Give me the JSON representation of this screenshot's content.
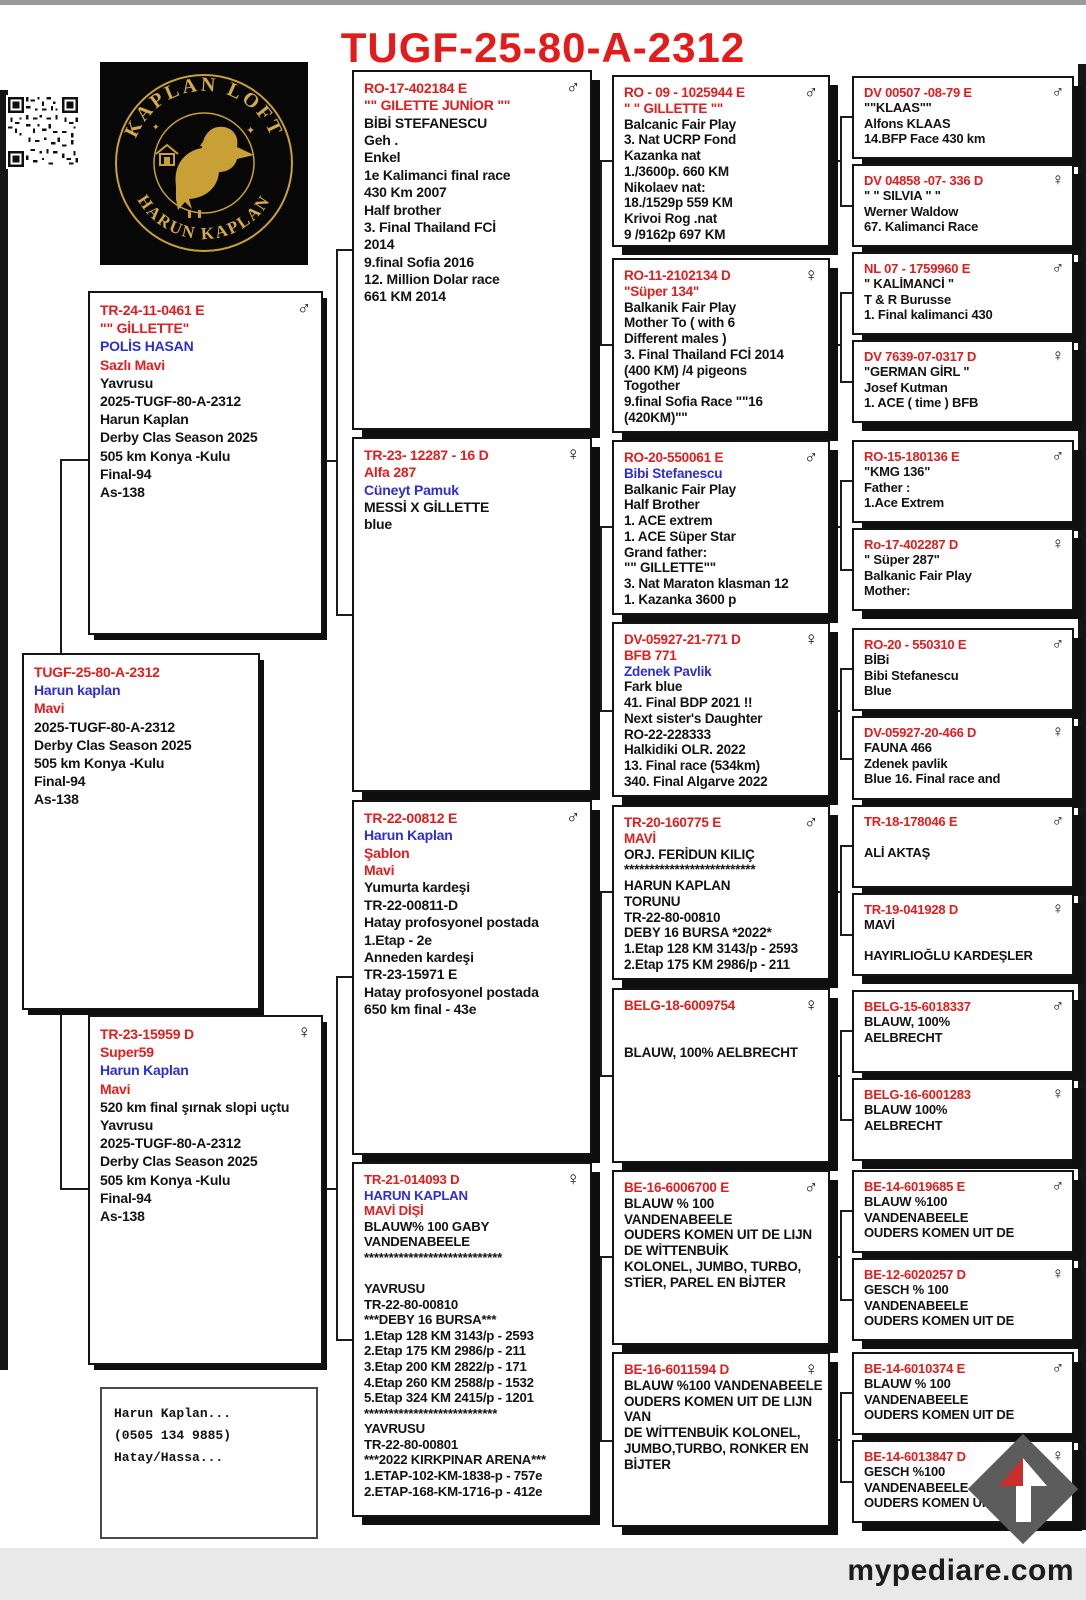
{
  "title": "TUGF-25-80-A-2312",
  "logo": {
    "loft_top": "KAPLAN LOFT",
    "loft_bottom": "HARUN KAPLAN"
  },
  "footer": {
    "site": "mypediare.com"
  },
  "contact": {
    "lines": [
      {
        "t": "Harun Kaplan..."
      },
      {
        "t": "(0505 134 9885)"
      },
      {
        "t": "Hatay/Hassa..."
      }
    ]
  },
  "boxes": {
    "subject": {
      "sex": "",
      "lines": [
        {
          "t": "TUGF-25-80-A-2312",
          "c": "red"
        },
        {
          "t": "Harun kaplan",
          "c": "blu"
        },
        {
          "t": "Mavi",
          "c": "red"
        },
        {
          "t": "2025-TUGF-80-A-2312"
        },
        {
          "t": "Derby Clas Season 2025"
        },
        {
          "t": "505 km Konya -Kulu"
        },
        {
          "t": "Final-94"
        },
        {
          "t": "As-138"
        }
      ]
    },
    "f": {
      "sex": "♂",
      "lines": [
        {
          "t": "TR-24-11-0461 E",
          "c": "red"
        },
        {
          "t": "\"\" GİLLETTE\"",
          "c": "red"
        },
        {
          "t": "POLİS HASAN",
          "c": "blu"
        },
        {
          "t": "Sazlı Mavi",
          "c": "red"
        },
        {
          "t": "Yavrusu"
        },
        {
          "t": "2025-TUGF-80-A-2312"
        },
        {
          "t": "Harun Kaplan"
        },
        {
          "t": "Derby Clas Season 2025"
        },
        {
          "t": "505 km Konya -Kulu"
        },
        {
          "t": "Final-94"
        },
        {
          "t": "As-138"
        }
      ]
    },
    "m": {
      "sex": "♀",
      "lines": [
        {
          "t": "TR-23-15959 D",
          "c": "red"
        },
        {
          "t": "Super59",
          "c": "red"
        },
        {
          "t": "Harun Kaplan",
          "c": "blu"
        },
        {
          "t": "Mavi",
          "c": "red"
        },
        {
          "t": "520 km final şırnak slopi uçtu"
        },
        {
          "t": "Yavrusu"
        },
        {
          "t": "2025-TUGF-80-A-2312"
        },
        {
          "t": "Derby Clas Season 2025"
        },
        {
          "t": "505 km Konya -Kulu"
        },
        {
          "t": "Final-94"
        },
        {
          "t": "As-138"
        }
      ]
    },
    "ff": {
      "sex": "♂",
      "lines": [
        {
          "t": "RO-17-402184 E",
          "c": "red"
        },
        {
          "t": "\"\" GILETTE JUNİOR \"\"",
          "c": "red"
        },
        {
          "t": "BİBİ STEFANESCU"
        },
        {
          "t": "Geh ."
        },
        {
          "t": "Enkel"
        },
        {
          "t": "1e Kalimanci final race"
        },
        {
          "t": "430 Km 2007"
        },
        {
          "t": "Half brother"
        },
        {
          "t": "3. Final Thailand FCİ"
        },
        {
          "t": "2014"
        },
        {
          "t": "9.final Sofia 2016"
        },
        {
          "t": "12. Million Dolar race"
        },
        {
          "t": "661 KM 2014"
        }
      ]
    },
    "fm": {
      "sex": "♀",
      "lines": [
        {
          "t": "TR-23- 12287 - 16 D",
          "c": "red"
        },
        {
          "t": "Alfa 287",
          "c": "red"
        },
        {
          "t": "Cüneyt Pamuk",
          "c": "blu"
        },
        {
          "t": "MESSİ X GİLLETTE"
        },
        {
          "t": "blue"
        }
      ]
    },
    "mf": {
      "sex": "♂",
      "lines": [
        {
          "t": "TR-22-00812 E",
          "c": "red"
        },
        {
          "t": "Harun Kaplan",
          "c": "blu"
        },
        {
          "t": "Şablon",
          "c": "red"
        },
        {
          "t": "Mavi",
          "c": "red"
        },
        {
          "t": "Yumurta kardeşi"
        },
        {
          "t": "TR-22-00811-D"
        },
        {
          "t": "Hatay profosyonel postada"
        },
        {
          "t": "1.Etap - 2e"
        },
        {
          "t": "Anneden kardeşi"
        },
        {
          "t": "TR-23-15971 E"
        },
        {
          "t": "Hatay profosyonel postada"
        },
        {
          "t": "650 km final - 43e"
        }
      ]
    },
    "mm": {
      "sex": "♀",
      "lines": [
        {
          "t": "TR-21-014093 D",
          "c": "red"
        },
        {
          "t": "HARUN KAPLAN",
          "c": "blu"
        },
        {
          "t": "MAVİ DİŞİ",
          "c": "red"
        },
        {
          "t": "BLAUW% 100 GABY"
        },
        {
          "t": "VANDENABEELE"
        },
        {
          "t": "****************************"
        },
        {
          "t": ""
        },
        {
          "t": "YAVRUSU"
        },
        {
          "t": "TR-22-80-00810"
        },
        {
          "t": "***DEBY 16 BURSA***"
        },
        {
          "t": "1.Etap 128 KM 3143/p - 2593"
        },
        {
          "t": "2.Etap 175 KM 2986/p - 211"
        },
        {
          "t": "3.Etap 200 KM 2822/p - 171"
        },
        {
          "t": "4.Etap 260 KM 2588/p - 1532"
        },
        {
          "t": "5.Etap 324 KM 2415/p - 1201"
        },
        {
          "t": "***************************"
        },
        {
          "t": "YAVRUSU"
        },
        {
          "t": "TR-22-80-00801"
        },
        {
          "t": "***2022 KIRKPINAR ARENA***"
        },
        {
          "t": "1.ETAP-102-KM-1838-p - 757e"
        },
        {
          "t": "2.ETAP-168-KM-1716-p - 412e"
        }
      ]
    },
    "fff": {
      "sex": "♂",
      "lines": [
        {
          "t": "RO - 09 - 1025944 E",
          "c": "red"
        },
        {
          "t": "\" \" GILLETTE \"\"",
          "c": "red"
        },
        {
          "t": "Balcanic Fair Play"
        },
        {
          "t": "3. Nat UCRP Fond"
        },
        {
          "t": "Kazanka nat"
        },
        {
          "t": "1./3600p. 660 KM"
        },
        {
          "t": "Nikolaev nat:"
        },
        {
          "t": "18./1529p 559 KM"
        },
        {
          "t": "Krivoi Rog .nat"
        },
        {
          "t": "9    /9162p     697 KM"
        }
      ]
    },
    "ffm": {
      "sex": "♀",
      "lines": [
        {
          "t": "RO-11-2102134 D",
          "c": "red"
        },
        {
          "t": "\"Süper 134\"",
          "c": "red"
        },
        {
          "t": "Balkanik Fair Play"
        },
        {
          "t": "Mother To ( with 6"
        },
        {
          "t": "Different males )"
        },
        {
          "t": "3. Final Thailand FCİ  2014"
        },
        {
          "t": "(400 KM) /4 pigeons"
        },
        {
          "t": "Togother"
        },
        {
          "t": "9.final Sofia Race \"\"16"
        },
        {
          "t": "(420KM)\"\""
        }
      ]
    },
    "fmf": {
      "sex": "♂",
      "lines": [
        {
          "t": "RO-20-550061 E",
          "c": "red"
        },
        {
          "t": "Bibi Stefanescu",
          "c": "blu"
        },
        {
          "t": "Balkanic Fair Play"
        },
        {
          "t": "Half Brother"
        },
        {
          "t": "1. ACE extrem"
        },
        {
          "t": "1. ACE Süper Star"
        },
        {
          "t": "Grand father:"
        },
        {
          "t": "\"\" GILLETTE\"\""
        },
        {
          "t": "3. Nat Maraton klasman 12"
        },
        {
          "t": "1. Kazanka 3600 p"
        }
      ]
    },
    "fmm": {
      "sex": "♀",
      "lines": [
        {
          "t": "DV-05927-21-771 D",
          "c": "red"
        },
        {
          "t": "BFB 771",
          "c": "red"
        },
        {
          "t": "Zdenek Pavlik",
          "c": "blu"
        },
        {
          "t": "Fark blue"
        },
        {
          "t": "41. Final BDP 2021 !!"
        },
        {
          "t": "Next  sister's Daughter"
        },
        {
          "t": "RO-22-228333"
        },
        {
          "t": "Halkidiki OLR. 2022"
        },
        {
          "t": "13. Final race (534km)"
        },
        {
          "t": "340. Final Algarve 2022"
        }
      ]
    },
    "mff": {
      "sex": "♂",
      "lines": [
        {
          "t": "TR-20-160775 E",
          "c": "red"
        },
        {
          "t": "MAVİ",
          "c": "red"
        },
        {
          "t": "ORJ. FERİDUN KILIÇ"
        },
        {
          "t": "**************************"
        },
        {
          "t": "HARUN KAPLAN"
        },
        {
          "t": "TORUNU"
        },
        {
          "t": "TR-22-80-00810"
        },
        {
          "t": "DEBY 16 BURSA *2022*"
        },
        {
          "t": "1.Etap 128 KM 3143/p - 2593"
        },
        {
          "t": "2.Etap 175 KM 2986/p - 211"
        }
      ]
    },
    "mfm": {
      "sex": "♀",
      "lines": [
        {
          "t": "BELG-18-6009754",
          "c": "red"
        },
        {
          "t": ""
        },
        {
          "t": ""
        },
        {
          "t": "BLAUW, 100% AELBRECHT"
        }
      ]
    },
    "mmf": {
      "sex": "♂",
      "lines": [
        {
          "t": "BE-16-6006700 E",
          "c": "red"
        },
        {
          "t": "BLAUW % 100"
        },
        {
          "t": "VANDENABEELE"
        },
        {
          "t": "OUDERS KOMEN UIT DE LIJN"
        },
        {
          "t": "DE WİTTENBUİK"
        },
        {
          "t": "KOLONEL, JUMBO, TURBO,"
        },
        {
          "t": "STİER, PAREL EN BİJTER"
        }
      ]
    },
    "mmm": {
      "sex": "♀",
      "lines": [
        {
          "t": "BE-16-6011594 D",
          "c": "red"
        },
        {
          "t": "BLAUW %100 VANDENABEELE"
        },
        {
          "t": "OUDERS KOMEN UIT DE LIJN"
        },
        {
          "t": "VAN"
        },
        {
          "t": "DE WİTTENBUİK KOLONEL,"
        },
        {
          "t": "JUMBO,TURBO, RONKER EN"
        },
        {
          "t": "BİJTER"
        }
      ]
    },
    "ffff": {
      "sex": "♂",
      "lines": [
        {
          "t": "DV 00507 -08-79 E",
          "c": "red"
        },
        {
          "t": "\"\"KLAAS\"\""
        },
        {
          "t": "Alfons KLAAS"
        },
        {
          "t": "14.BFP Face 430 km"
        }
      ]
    },
    "fffm": {
      "sex": "♀",
      "lines": [
        {
          "t": "DV 04858 -07- 336 D",
          "c": "red"
        },
        {
          "t": "\" \" SILVIA \" \""
        },
        {
          "t": "Werner Waldow"
        },
        {
          "t": "67. Kalimanci Race"
        }
      ]
    },
    "ffmf": {
      "sex": "♂",
      "lines": [
        {
          "t": "NL 07 - 1759960 E",
          "c": "red"
        },
        {
          "t": "\" KALİMANCİ \""
        },
        {
          "t": "T & R   Burusse"
        },
        {
          "t": "1. Final kalimanci 430"
        }
      ]
    },
    "ffmm": {
      "sex": "♀",
      "lines": [
        {
          "t": "DV 7639-07-0317 D",
          "c": "red"
        },
        {
          "t": "\"GERMAN GİRL \""
        },
        {
          "t": "Josef Kutman"
        },
        {
          "t": "1. ACE ( time ) BFB"
        }
      ]
    },
    "fmff": {
      "sex": "♂",
      "lines": [
        {
          "t": "RO-15-180136 E",
          "c": "red"
        },
        {
          "t": "\"KMG 136\""
        },
        {
          "t": "Father :"
        },
        {
          "t": "1.Ace Extrem"
        }
      ]
    },
    "fmfm": {
      "sex": "♀",
      "lines": [
        {
          "t": "Ro-17-402287 D",
          "c": "red"
        },
        {
          "t": "\" Süper 287\""
        },
        {
          "t": "Balkanic Fair Play"
        },
        {
          "t": "Mother:"
        }
      ]
    },
    "fmmf": {
      "sex": "♂",
      "lines": [
        {
          "t": "RO-20 - 550310 E",
          "c": "red"
        },
        {
          "t": "BİBi"
        },
        {
          "t": "Bibi Stefanescu"
        },
        {
          "t": "Blue"
        }
      ]
    },
    "fmmm": {
      "sex": "♀",
      "lines": [
        {
          "t": "DV-05927-20-466 D",
          "c": "red"
        },
        {
          "t": "FAUNA 466"
        },
        {
          "t": "Zdenek pavlik"
        },
        {
          "t": "Blue 16. Final race and"
        }
      ]
    },
    "mfff": {
      "sex": "♂",
      "lines": [
        {
          "t": "TR-18-178046 E",
          "c": "red"
        },
        {
          "t": ""
        },
        {
          "t": "ALİ AKTAŞ"
        }
      ]
    },
    "mffm": {
      "sex": "♀",
      "lines": [
        {
          "t": "TR-19-041928 D",
          "c": "red"
        },
        {
          "t": "MAVİ"
        },
        {
          "t": ""
        },
        {
          "t": "HAYIRLIOĞLU KARDEŞLER"
        }
      ]
    },
    "mfmf": {
      "sex": "♂",
      "lines": [
        {
          "t": "BELG-15-6018337",
          "c": "red"
        },
        {
          "t": "BLAUW, 100%"
        },
        {
          "t": "AELBRECHT"
        }
      ]
    },
    "mfmm": {
      "sex": "♀",
      "lines": [
        {
          "t": "BELG-16-6001283",
          "c": "red"
        },
        {
          "t": "BLAUW 100%"
        },
        {
          "t": "AELBRECHT"
        }
      ]
    },
    "mmff": {
      "sex": "♂",
      "lines": [
        {
          "t": "BE-14-6019685 E",
          "c": "red"
        },
        {
          "t": "BLAUW %100"
        },
        {
          "t": "VANDENABEELE"
        },
        {
          "t": "OUDERS KOMEN UIT DE"
        }
      ]
    },
    "mmfm": {
      "sex": "♀",
      "lines": [
        {
          "t": "BE-12-6020257 D",
          "c": "red"
        },
        {
          "t": "GESCH % 100"
        },
        {
          "t": "VANDENABEELE"
        },
        {
          "t": "OUDERS KOMEN UIT DE"
        }
      ]
    },
    "mmmf": {
      "sex": "♂",
      "lines": [
        {
          "t": "BE-14-6010374 E",
          "c": "red"
        },
        {
          "t": "BLAUW % 100"
        },
        {
          "t": "VANDENABEELE"
        },
        {
          "t": "OUDERS KOMEN UIT DE"
        }
      ]
    },
    "mmmm": {
      "sex": "♀",
      "lines": [
        {
          "t": "BE-14-6013847 D",
          "c": "red"
        },
        {
          "t": "GESCH %100"
        },
        {
          "t": "VANDENABEELE"
        },
        {
          "t": "OUDERS KOMEN UIT DE"
        }
      ]
    }
  }
}
